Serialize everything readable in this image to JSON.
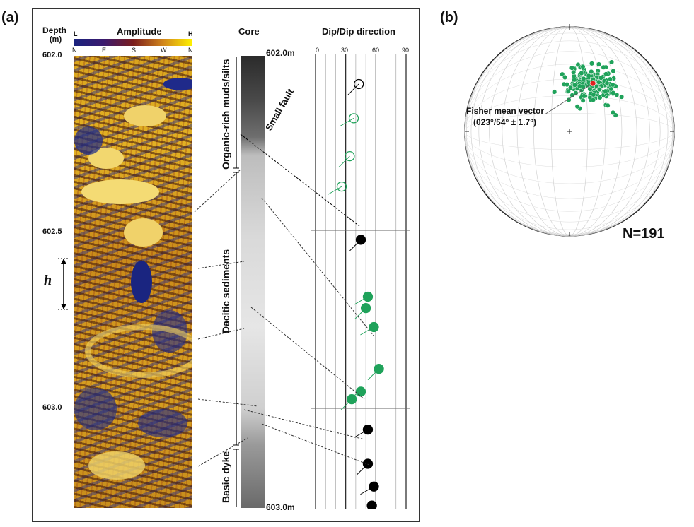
{
  "panel_a": {
    "label": "(a)",
    "depth_header": "Depth",
    "depth_unit": "(m)",
    "amplitude_title": "Amplitude",
    "amp_low": "L",
    "amp_high": "H",
    "direction_ticks": [
      "N",
      "E",
      "S",
      "W",
      "N"
    ],
    "depth_ticks": [
      "602.0",
      "602.5",
      "603.0"
    ],
    "h_label": "h",
    "core_title": "Core",
    "core_top": "602.0m",
    "core_bottom": "603.0m",
    "small_fault": "Small fault",
    "units": [
      "Organic-rich muds/silts",
      "Dacitic sediments",
      "Basic dyke"
    ],
    "dip_title": "Dip/Dip direction",
    "dip_ticks": [
      "0",
      "30",
      "60",
      "90"
    ]
  },
  "panel_b": {
    "label": "(b)",
    "fisher_line1": "Fisher mean vector",
    "fisher_line2": "(023°/54° ± 1.7°)",
    "n_label": "N=191"
  },
  "colors": {
    "green": "#1fa25a",
    "red": "#e02020",
    "black": "#000000"
  },
  "tadpoles": [
    {
      "dip": 43,
      "depth": 602.08,
      "fill": "open-black"
    },
    {
      "dip": 38,
      "depth": 602.17,
      "fill": "open-green"
    },
    {
      "dip": 34,
      "depth": 602.27,
      "fill": "open-green"
    },
    {
      "dip": 26,
      "depth": 602.35,
      "fill": "open-green"
    },
    {
      "dip": 45,
      "depth": 602.49,
      "fill": "black"
    },
    {
      "dip": 52,
      "depth": 602.64,
      "fill": "green"
    },
    {
      "dip": 50,
      "depth": 602.67,
      "fill": "green"
    },
    {
      "dip": 58,
      "depth": 602.72,
      "fill": "green"
    },
    {
      "dip": 63,
      "depth": 602.83,
      "fill": "green"
    },
    {
      "dip": 45,
      "depth": 602.89,
      "fill": "green"
    },
    {
      "dip": 36,
      "depth": 602.91,
      "fill": "green"
    },
    {
      "dip": 52,
      "depth": 602.99,
      "fill": "black"
    },
    {
      "dip": 52,
      "depth": 603.08,
      "fill": "black"
    },
    {
      "dip": 58,
      "depth": 603.14,
      "fill": "black"
    },
    {
      "dip": 56,
      "depth": 603.19,
      "fill": "black"
    }
  ]
}
